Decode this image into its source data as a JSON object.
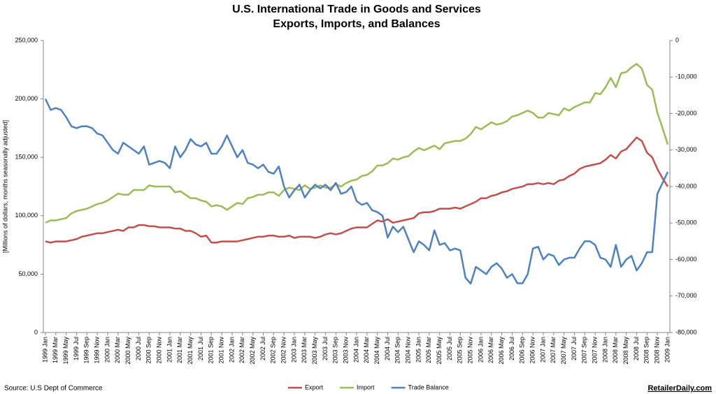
{
  "chart_data": {
    "type": "line",
    "title": "U.S. International Trade in Goods and Services",
    "subtitle": "Exports, Imports, and Balances",
    "y_label": "[Millions of dollars, months seasonally adjusted]",
    "source": "Source: U.S Dept of Commerce",
    "credit": "RetailerDaily.com",
    "legend": "bottom",
    "grid": false,
    "categories": [
      "1999 Jan",
      null,
      "1999 Mar",
      null,
      "1999 May",
      null,
      "1999 Jul",
      null,
      "1999 Sep",
      null,
      "1999 Nov",
      null,
      "2000 Jan",
      null,
      "2000 Mar",
      null,
      "2000 May",
      null,
      "2000 Jul",
      null,
      "2000 Sep",
      null,
      "2000 Nov",
      null,
      "2001 Jan",
      null,
      "2001 Mar",
      null,
      "2001 May",
      null,
      "2001 Jul",
      null,
      "2001 Sep",
      null,
      "2001 Nov",
      null,
      "2002 Jan",
      null,
      "2002 Mar",
      null,
      "2002 May",
      null,
      "2002 Jul",
      null,
      "2002 Sep",
      null,
      "2002 Nov",
      null,
      "2003 Jan",
      null,
      "2003 Mar",
      null,
      "2003 May",
      null,
      "2003 Jul",
      null,
      "2003 Sep",
      null,
      "2003 Nov",
      null,
      "2004 Jan",
      null,
      "2004 Mar",
      null,
      "2004 May",
      null,
      "2004 Jul",
      null,
      "2004 Sep",
      null,
      "2004 Nov",
      null,
      "2005 Jan",
      null,
      "2005 Mar",
      null,
      "2005 May",
      null,
      "2005 Jul",
      null,
      "2005 Sep",
      null,
      "2005 Nov",
      null,
      "2006 Jan",
      null,
      "2006 Mar",
      null,
      "2006 May",
      null,
      "2006 Jul",
      null,
      "2006 Sep",
      null,
      "2006 Nov",
      null,
      "2007 Jan",
      null,
      "2007 Mar",
      null,
      "2007 May",
      null,
      "2007 Jul",
      null,
      "2007 Sep",
      null,
      "2007 Nov",
      null,
      "2008 Jan",
      null,
      "2008 Mar",
      null,
      "2008 May",
      null,
      "2008 Jul",
      null,
      "2008 Sep",
      null,
      "2008 Nov",
      null,
      "2009 Jan"
    ],
    "series": [
      {
        "name": "Export",
        "color": "#c0504d",
        "values": [
          78000,
          77000,
          78000,
          78000,
          78000,
          79000,
          80000,
          82000,
          83000,
          84000,
          85000,
          85000,
          86000,
          87000,
          88000,
          87000,
          90000,
          90000,
          92000,
          92000,
          91000,
          91000,
          90000,
          90000,
          90000,
          89000,
          89000,
          87000,
          87000,
          85000,
          82000,
          83000,
          77000,
          77000,
          78000,
          78000,
          78000,
          78000,
          79000,
          80000,
          81000,
          82000,
          82000,
          83000,
          83000,
          82000,
          82000,
          83000,
          81000,
          82000,
          82000,
          82000,
          81000,
          82000,
          84000,
          85000,
          84000,
          85000,
          87000,
          89000,
          90000,
          90000,
          90000,
          93000,
          96000,
          95000,
          97000,
          94000,
          95000,
          96000,
          97000,
          98000,
          102000,
          103000,
          103000,
          104000,
          106000,
          106000,
          106000,
          107000,
          106000,
          108000,
          110000,
          112000,
          115000,
          115000,
          117000,
          118000,
          120000,
          121000,
          123000,
          124000,
          125000,
          127000,
          127000,
          128000,
          127000,
          128000,
          127000,
          130000,
          131000,
          134000,
          136000,
          140000,
          142000,
          143000,
          144000,
          145000,
          148000,
          152000,
          149000,
          155000,
          157000,
          162000,
          167000,
          164000,
          154000,
          150000,
          140000,
          132000,
          125000
        ]
      },
      {
        "name": "Import",
        "color": "#9bbb59",
        "values": [
          94000,
          96000,
          96000,
          97000,
          98000,
          102000,
          104000,
          105000,
          106000,
          108000,
          110000,
          111000,
          113000,
          116000,
          119000,
          118000,
          118000,
          122000,
          122000,
          122000,
          126000,
          125000,
          125000,
          125000,
          125000,
          120000,
          121000,
          118000,
          115000,
          115000,
          113000,
          112000,
          108000,
          109000,
          108000,
          105000,
          108000,
          111000,
          110000,
          115000,
          116000,
          118000,
          118000,
          120000,
          120000,
          117000,
          122000,
          124000,
          123000,
          122000,
          126000,
          123000,
          124000,
          126000,
          124000,
          124000,
          127000,
          125000,
          128000,
          130000,
          131000,
          134000,
          135000,
          138000,
          143000,
          143000,
          145000,
          149000,
          148000,
          150000,
          151000,
          155000,
          158000,
          156000,
          158000,
          160000,
          157000,
          162000,
          163000,
          164000,
          164000,
          166000,
          170000,
          176000,
          174000,
          177000,
          180000,
          178000,
          179000,
          181000,
          185000,
          186000,
          188000,
          190000,
          188000,
          184000,
          184000,
          188000,
          187000,
          186000,
          192000,
          190000,
          193000,
          195000,
          197000,
          197000,
          205000,
          204000,
          210000,
          218000,
          210000,
          222000,
          223000,
          227000,
          230000,
          226000,
          212000,
          208000,
          188000,
          175000,
          161000
        ]
      },
      {
        "name": "Trade Balance",
        "color": "#4f81bd",
        "axis": "y2",
        "values": [
          -16000,
          -19000,
          -18500,
          -19000,
          -21000,
          -23500,
          -24000,
          -23500,
          -23500,
          -24000,
          -25500,
          -26000,
          -28000,
          -30000,
          -31000,
          -28000,
          -29000,
          -30000,
          -31000,
          -29000,
          -34000,
          -33500,
          -33000,
          -33500,
          -35000,
          -29000,
          -32000,
          -30000,
          -27000,
          -28500,
          -29000,
          -28000,
          -31000,
          -31000,
          -29000,
          -26000,
          -29000,
          -32000,
          -30000,
          -33500,
          -34000,
          -35000,
          -34000,
          -36000,
          -36500,
          -34500,
          -40000,
          -43000,
          -41000,
          -39500,
          -43000,
          -41000,
          -39500,
          -40500,
          -39500,
          -41000,
          -39000,
          -42000,
          -41500,
          -40000,
          -44000,
          -45000,
          -44500,
          -46500,
          -47000,
          -48000,
          -54000,
          -51000,
          -52500,
          -51000,
          -54500,
          -58000,
          -55000,
          -56000,
          -57500,
          -52000,
          -56000,
          -55500,
          -57500,
          -57000,
          -57500,
          -65000,
          -66600,
          -62000,
          -63000,
          -64000,
          -62000,
          -61000,
          -62500,
          -65000,
          -64000,
          -66500,
          -66500,
          -64000,
          -57000,
          -56500,
          -60000,
          -58500,
          -59000,
          -61500,
          -60000,
          -59500,
          -59500,
          -57000,
          -55000,
          -55000,
          -56000,
          -59500,
          -60000,
          -62000,
          -56000,
          -62000,
          -60000,
          -59000,
          -63000,
          -61000,
          -58000,
          -58000,
          -42000,
          -39000,
          -36000
        ]
      }
    ],
    "ylim": [
      0,
      250000
    ],
    "yticks": [
      0,
      {
        "value": 50000,
        "label": "50,000"
      },
      {
        "value": 100000,
        "label": "100,000"
      },
      {
        "value": 150000,
        "label": "150,000"
      },
      {
        "value": 200000,
        "label": "200,000"
      },
      {
        "value": 250000,
        "label": "250,000"
      }
    ],
    "y2lim": [
      -80000,
      0
    ],
    "y2ticks": [
      {
        "value": -80000,
        "label": "-80,000"
      },
      {
        "value": -70000,
        "label": "-70,000"
      },
      {
        "value": -60000,
        "label": "-60,000"
      },
      {
        "value": -50000,
        "label": "-50,000"
      },
      {
        "value": -40000,
        "label": "-40,000"
      },
      {
        "value": -30000,
        "label": "-30,000"
      },
      {
        "value": -20000,
        "label": "-20,000"
      },
      {
        "value": -10000,
        "label": "-10,000"
      },
      0
    ]
  }
}
